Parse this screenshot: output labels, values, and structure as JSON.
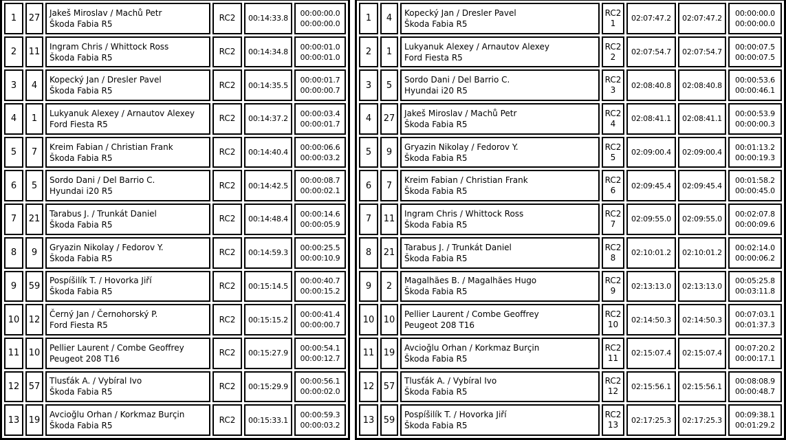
{
  "tables": [
    {
      "kind": "stage",
      "class_label": "RC2",
      "rows": [
        {
          "pos": "1",
          "no": "27",
          "crew": "Jakeš Miroslav / Machů Petr",
          "car": "Škoda Fabia R5",
          "cls": "RC2",
          "time": "00:14:33.8",
          "gap_leader": "00:00:00.0",
          "gap_prev": "00:00:00.0"
        },
        {
          "pos": "2",
          "no": "11",
          "crew": "Ingram Chris / Whittock Ross",
          "car": "Škoda Fabia R5",
          "cls": "RC2",
          "time": "00:14:34.8",
          "gap_leader": "00:00:01.0",
          "gap_prev": "00:00:01.0"
        },
        {
          "pos": "3",
          "no": "4",
          "crew": "Kopecký Jan / Dresler Pavel",
          "car": "Škoda Fabia R5",
          "cls": "RC2",
          "time": "00:14:35.5",
          "gap_leader": "00:00:01.7",
          "gap_prev": "00:00:00.7"
        },
        {
          "pos": "4",
          "no": "1",
          "crew": "Lukyanuk Alexey / Arnautov Alexey",
          "car": "Ford Fiesta R5",
          "cls": "RC2",
          "time": "00:14:37.2",
          "gap_leader": "00:00:03.4",
          "gap_prev": "00:00:01.7"
        },
        {
          "pos": "5",
          "no": "7",
          "crew": "Kreim Fabian / Christian Frank",
          "car": "Škoda Fabia R5",
          "cls": "RC2",
          "time": "00:14:40.4",
          "gap_leader": "00:00:06.6",
          "gap_prev": "00:00:03.2"
        },
        {
          "pos": "6",
          "no": "5",
          "crew": "Sordo Dani / Del Barrio C.",
          "car": "Hyundai i20 R5",
          "cls": "RC2",
          "time": "00:14:42.5",
          "gap_leader": "00:00:08.7",
          "gap_prev": "00:00:02.1"
        },
        {
          "pos": "7",
          "no": "21",
          "crew": "Tarabus J. / Trunkát Daniel",
          "car": "Škoda Fabia R5",
          "cls": "RC2",
          "time": "00:14:48.4",
          "gap_leader": "00:00:14.6",
          "gap_prev": "00:00:05.9"
        },
        {
          "pos": "8",
          "no": "9",
          "crew": "Gryazin Nikolay / Fedorov Y.",
          "car": "Škoda Fabia R5",
          "cls": "RC2",
          "time": "00:14:59.3",
          "gap_leader": "00:00:25.5",
          "gap_prev": "00:00:10.9"
        },
        {
          "pos": "9",
          "no": "59",
          "crew": "Pospíšilík T. / Hovorka Jiří",
          "car": "Škoda Fabia R5",
          "cls": "RC2",
          "time": "00:15:14.5",
          "gap_leader": "00:00:40.7",
          "gap_prev": "00:00:15.2"
        },
        {
          "pos": "10",
          "no": "12",
          "crew": "Černý Jan / Černohorský P.",
          "car": "Ford Fiesta R5",
          "cls": "RC2",
          "time": "00:15:15.2",
          "gap_leader": "00:00:41.4",
          "gap_prev": "00:00:00.7"
        },
        {
          "pos": "11",
          "no": "10",
          "crew": "Pellier Laurent / Combe Geoffrey",
          "car": "Peugeot 208 T16",
          "cls": "RC2",
          "time": "00:15:27.9",
          "gap_leader": "00:00:54.1",
          "gap_prev": "00:00:12.7"
        },
        {
          "pos": "12",
          "no": "57",
          "crew": "Tlusťák A. / Vybíral Ivo",
          "car": "Škoda Fabia R5",
          "cls": "RC2",
          "time": "00:15:29.9",
          "gap_leader": "00:00:56.1",
          "gap_prev": "00:00:02.0"
        },
        {
          "pos": "13",
          "no": "19",
          "crew": "Avcioğlu Orhan / Korkmaz Burçin",
          "car": "Škoda Fabia R5",
          "cls": "RC2",
          "time": "00:15:33.1",
          "gap_leader": "00:00:59.3",
          "gap_prev": "00:00:03.2"
        }
      ]
    },
    {
      "kind": "overall",
      "class_label": "RC2",
      "rows": [
        {
          "pos": "1",
          "no": "4",
          "crew": "Kopecký Jan / Dresler Pavel",
          "car": "Škoda Fabia R5",
          "cls": "RC2",
          "cls_pos": "1",
          "time1": "02:07:47.2",
          "time2": "02:07:47.2",
          "gap_leader": "00:00:00.0",
          "gap_prev": "00:00:00.0"
        },
        {
          "pos": "2",
          "no": "1",
          "crew": "Lukyanuk Alexey / Arnautov Alexey",
          "car": "Ford Fiesta R5",
          "cls": "RC2",
          "cls_pos": "2",
          "time1": "02:07:54.7",
          "time2": "02:07:54.7",
          "gap_leader": "00:00:07.5",
          "gap_prev": "00:00:07.5"
        },
        {
          "pos": "3",
          "no": "5",
          "crew": "Sordo Dani / Del Barrio C.",
          "car": "Hyundai i20 R5",
          "cls": "RC2",
          "cls_pos": "3",
          "time1": "02:08:40.8",
          "time2": "02:08:40.8",
          "gap_leader": "00:00:53.6",
          "gap_prev": "00:00:46.1"
        },
        {
          "pos": "4",
          "no": "27",
          "crew": "Jakeš Miroslav / Machů Petr",
          "car": "Škoda Fabia R5",
          "cls": "RC2",
          "cls_pos": "4",
          "time1": "02:08:41.1",
          "time2": "02:08:41.1",
          "gap_leader": "00:00:53.9",
          "gap_prev": "00:00:00.3"
        },
        {
          "pos": "5",
          "no": "9",
          "crew": "Gryazin Nikolay / Fedorov Y.",
          "car": "Škoda Fabia R5",
          "cls": "RC2",
          "cls_pos": "5",
          "time1": "02:09:00.4",
          "time2": "02:09:00.4",
          "gap_leader": "00:01:13.2",
          "gap_prev": "00:00:19.3"
        },
        {
          "pos": "6",
          "no": "7",
          "crew": "Kreim Fabian / Christian Frank",
          "car": "Škoda Fabia R5",
          "cls": "RC2",
          "cls_pos": "6",
          "time1": "02:09:45.4",
          "time2": "02:09:45.4",
          "gap_leader": "00:01:58.2",
          "gap_prev": "00:00:45.0"
        },
        {
          "pos": "7",
          "no": "11",
          "crew": "Ingram Chris / Whittock Ross",
          "car": "Škoda Fabia R5",
          "cls": "RC2",
          "cls_pos": "7",
          "time1": "02:09:55.0",
          "time2": "02:09:55.0",
          "gap_leader": "00:02:07.8",
          "gap_prev": "00:00:09.6"
        },
        {
          "pos": "8",
          "no": "21",
          "crew": "Tarabus J. / Trunkát Daniel",
          "car": "Škoda Fabia R5",
          "cls": "RC2",
          "cls_pos": "8",
          "time1": "02:10:01.2",
          "time2": "02:10:01.2",
          "gap_leader": "00:02:14.0",
          "gap_prev": "00:00:06.2"
        },
        {
          "pos": "9",
          "no": "2",
          "crew": "Magalhães B. / Magalhães Hugo",
          "car": "Škoda Fabia R5",
          "cls": "RC2",
          "cls_pos": "9",
          "time1": "02:13:13.0",
          "time2": "02:13:13.0",
          "gap_leader": "00:05:25.8",
          "gap_prev": "00:03:11.8"
        },
        {
          "pos": "10",
          "no": "10",
          "crew": "Pellier Laurent / Combe Geoffrey",
          "car": "Peugeot 208 T16",
          "cls": "RC2",
          "cls_pos": "10",
          "time1": "02:14:50.3",
          "time2": "02:14:50.3",
          "gap_leader": "00:07:03.1",
          "gap_prev": "00:01:37.3"
        },
        {
          "pos": "11",
          "no": "19",
          "crew": "Avcioğlu Orhan / Korkmaz Burçin",
          "car": "Škoda Fabia R5",
          "cls": "RC2",
          "cls_pos": "11",
          "time1": "02:15:07.4",
          "time2": "02:15:07.4",
          "gap_leader": "00:07:20.2",
          "gap_prev": "00:00:17.1"
        },
        {
          "pos": "12",
          "no": "57",
          "crew": "Tlusťák A. / Vybíral Ivo",
          "car": "Škoda Fabia R5",
          "cls": "RC2",
          "cls_pos": "12",
          "time1": "02:15:56.1",
          "time2": "02:15:56.1",
          "gap_leader": "00:08:08.9",
          "gap_prev": "00:00:48.7"
        },
        {
          "pos": "13",
          "no": "59",
          "crew": "Pospíšilík T. / Hovorka Jiří",
          "car": "Škoda Fabia R5",
          "cls": "RC2",
          "cls_pos": "13",
          "time1": "02:17:25.3",
          "time2": "02:17:25.3",
          "gap_leader": "00:09:38.1",
          "gap_prev": "00:01:29.2"
        }
      ]
    }
  ],
  "colors": {
    "border": "#000000",
    "text": "#000000",
    "background": "#ffffff"
  }
}
